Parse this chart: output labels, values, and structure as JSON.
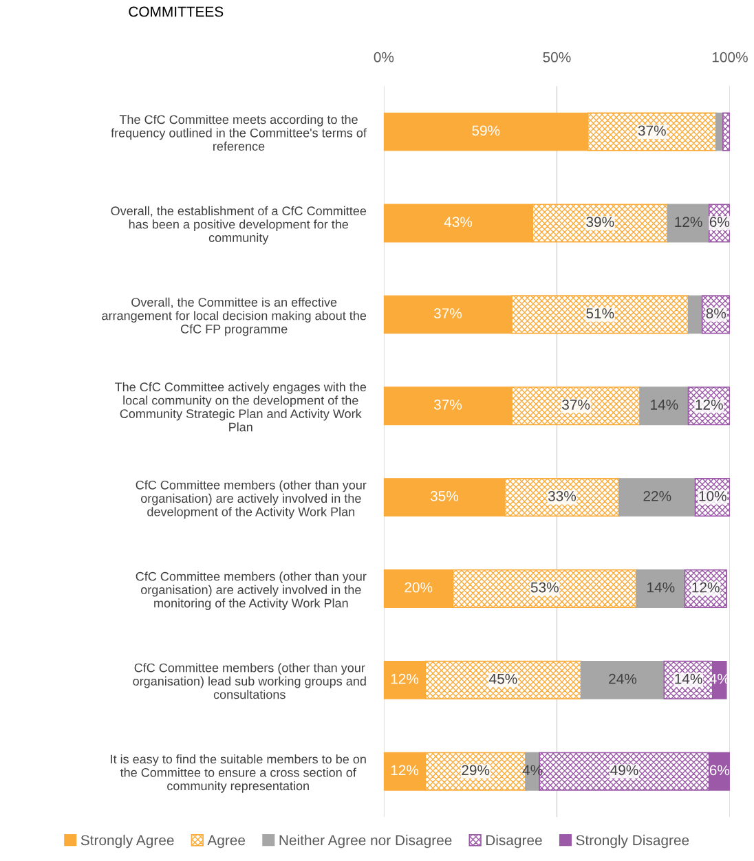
{
  "chart_data": {
    "type": "bar",
    "orientation": "horizontal",
    "stacked": true,
    "title": "COMMITTEES",
    "categories": [
      "The CfC Committee meets according to the\nfrequency outlined in the Committee's terms of\nreference",
      "Overall, the establishment of a CfC Committee\nhas been a positive development for the\ncommunity",
      "Overall, the Committee is an effective\narrangement for local decision making about the\nCfC FP programme",
      "The CfC Committee actively engages with the\nlocal community on the development of the\nCommunity Strategic Plan and Activity Work\nPlan",
      "CfC Committee members (other than your\norganisation) are actively involved in the\ndevelopment of the Activity Work Plan",
      "CfC Committee members (other than your\norganisation) are actively involved in the\nmonitoring of the Activity Work Plan",
      "CfC Committee members (other than your\norganisation) lead sub working groups and\nconsultations",
      "It is easy to find the suitable members to be on\nthe Committee to ensure a cross section of\ncommunity representation"
    ],
    "series": [
      {
        "name": "Strongly Agree",
        "color": "#fbab3a",
        "values": [
          59,
          43,
          37,
          37,
          35,
          20,
          12,
          12
        ],
        "value_labels": [
          "59%",
          "43%",
          "37%",
          "37%",
          "35%",
          "20%",
          "12%",
          "12%"
        ]
      },
      {
        "name": "Agree",
        "color": "#fbab3a",
        "values": [
          37,
          39,
          51,
          37,
          33,
          53,
          45,
          29
        ],
        "value_labels": [
          "37%",
          "39%",
          "51%",
          "37%",
          "33%",
          "53%",
          "45%",
          "29%"
        ]
      },
      {
        "name": "Neither Agree nor Disagree",
        "color": "#a6a6a6",
        "values": [
          2,
          12,
          4,
          14,
          22,
          14,
          24,
          4
        ],
        "value_labels": [
          null,
          "12%",
          null,
          "14%",
          "22%",
          "14%",
          "24%",
          "4%"
        ]
      },
      {
        "name": "Disagree",
        "color": "#9b59a8",
        "values": [
          2,
          6,
          8,
          12,
          10,
          12,
          14,
          49
        ],
        "value_labels": [
          null,
          "6%",
          "8%",
          "12%",
          "10%",
          "12%",
          "14%",
          "49%"
        ]
      },
      {
        "name": "Strongly Disagree",
        "color": "#9b59a8",
        "values": [
          0,
          0,
          0,
          0,
          0,
          0,
          4,
          6
        ],
        "value_labels": [
          null,
          null,
          null,
          null,
          null,
          null,
          "4%",
          "6%"
        ]
      }
    ],
    "xlim": [
      0,
      100
    ],
    "xticks": [
      {
        "value": 0,
        "label": "0%"
      },
      {
        "value": 50,
        "label": "50%"
      },
      {
        "value": 100,
        "label": "100%"
      }
    ],
    "grid": "x",
    "legend": "bottom"
  }
}
